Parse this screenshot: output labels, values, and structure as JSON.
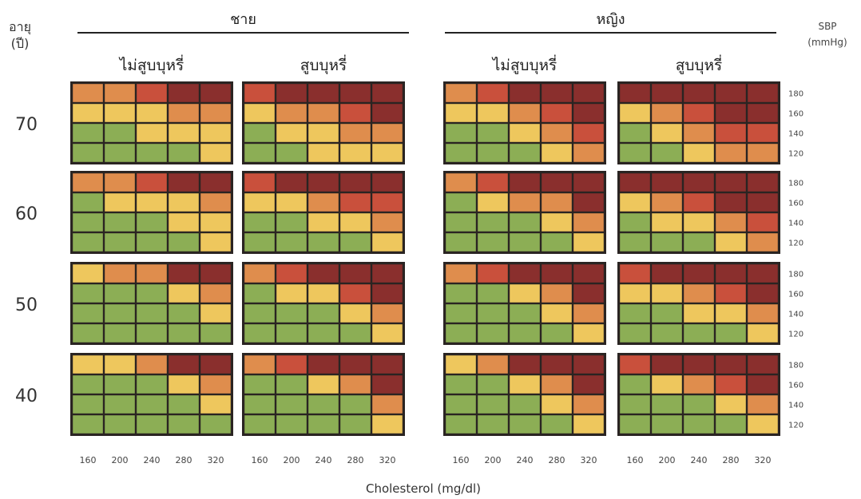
{
  "chart_data": {
    "type": "heatmap",
    "title": "",
    "xlabel": "Cholesterol (mg/dl)",
    "y_axis_label": [
      "อายุ",
      "(ปี)"
    ],
    "sbp_axis_label": [
      "SBP",
      "(mmHg)"
    ],
    "sex_groups": [
      "ชาย",
      "หญิง"
    ],
    "smoking_groups": [
      "ไม่สูบบุหรี่",
      "สูบบุหรี่"
    ],
    "cholesterol_ticks": [
      "160",
      "200",
      "240",
      "280",
      "320"
    ],
    "sbp_ticks": [
      "180",
      "160",
      "140",
      "120"
    ],
    "age_groups": [
      "70",
      "60",
      "50",
      "40"
    ],
    "risk_colors": {
      "1": "#8cae55",
      "2": "#eec75d",
      "3": "#df8d4d",
      "4": "#c9503c",
      "5": "#8a2f2d"
    },
    "panels": [
      {
        "sex": "ชาย",
        "smoking": "ไม่สูบบุหรี่",
        "age": "70",
        "grid": [
          [
            3,
            3,
            4,
            5,
            5
          ],
          [
            2,
            2,
            2,
            3,
            3
          ],
          [
            1,
            1,
            2,
            2,
            2
          ],
          [
            1,
            1,
            1,
            1,
            2
          ]
        ]
      },
      {
        "sex": "ชาย",
        "smoking": "สูบบุหรี่",
        "age": "70",
        "grid": [
          [
            4,
            5,
            5,
            5,
            5
          ],
          [
            2,
            3,
            3,
            4,
            5
          ],
          [
            1,
            2,
            2,
            3,
            3
          ],
          [
            1,
            1,
            2,
            2,
            2
          ]
        ]
      },
      {
        "sex": "หญิง",
        "smoking": "ไม่สูบบุหรี่",
        "age": "70",
        "grid": [
          [
            3,
            4,
            5,
            5,
            5
          ],
          [
            2,
            2,
            3,
            4,
            5
          ],
          [
            1,
            1,
            2,
            3,
            4
          ],
          [
            1,
            1,
            1,
            2,
            3
          ]
        ]
      },
      {
        "sex": "หญิง",
        "smoking": "สูบบุหรี่",
        "age": "70",
        "grid": [
          [
            5,
            5,
            5,
            5,
            5
          ],
          [
            2,
            3,
            4,
            5,
            5
          ],
          [
            1,
            2,
            3,
            4,
            4
          ],
          [
            1,
            1,
            2,
            3,
            3
          ]
        ]
      },
      {
        "sex": "ชาย",
        "smoking": "ไม่สูบบุหรี่",
        "age": "60",
        "grid": [
          [
            3,
            3,
            4,
            5,
            5
          ],
          [
            1,
            2,
            2,
            2,
            3
          ],
          [
            1,
            1,
            1,
            2,
            2
          ],
          [
            1,
            1,
            1,
            1,
            2
          ]
        ]
      },
      {
        "sex": "ชาย",
        "smoking": "สูบบุหรี่",
        "age": "60",
        "grid": [
          [
            4,
            5,
            5,
            5,
            5
          ],
          [
            2,
            2,
            3,
            4,
            4
          ],
          [
            1,
            1,
            2,
            2,
            3
          ],
          [
            1,
            1,
            1,
            1,
            2
          ]
        ]
      },
      {
        "sex": "หญิง",
        "smoking": "ไม่สูบบุหรี่",
        "age": "60",
        "grid": [
          [
            3,
            4,
            5,
            5,
            5
          ],
          [
            1,
            2,
            3,
            3,
            5
          ],
          [
            1,
            1,
            1,
            2,
            3
          ],
          [
            1,
            1,
            1,
            1,
            2
          ]
        ]
      },
      {
        "sex": "หญิง",
        "smoking": "สูบบุหรี่",
        "age": "60",
        "grid": [
          [
            5,
            5,
            5,
            5,
            5
          ],
          [
            2,
            3,
            4,
            5,
            5
          ],
          [
            1,
            2,
            2,
            3,
            4
          ],
          [
            1,
            1,
            1,
            2,
            3
          ]
        ]
      },
      {
        "sex": "ชาย",
        "smoking": "ไม่สูบบุหรี่",
        "age": "50",
        "grid": [
          [
            2,
            3,
            3,
            5,
            5
          ],
          [
            1,
            1,
            1,
            2,
            3
          ],
          [
            1,
            1,
            1,
            1,
            2
          ],
          [
            1,
            1,
            1,
            1,
            1
          ]
        ]
      },
      {
        "sex": "ชาย",
        "smoking": "สูบบุหรี่",
        "age": "50",
        "grid": [
          [
            3,
            4,
            5,
            5,
            5
          ],
          [
            1,
            2,
            2,
            4,
            5
          ],
          [
            1,
            1,
            1,
            2,
            3
          ],
          [
            1,
            1,
            1,
            1,
            2
          ]
        ]
      },
      {
        "sex": "หญิง",
        "smoking": "ไม่สูบบุหรี่",
        "age": "50",
        "grid": [
          [
            3,
            4,
            5,
            5,
            5
          ],
          [
            1,
            1,
            2,
            3,
            5
          ],
          [
            1,
            1,
            1,
            2,
            3
          ],
          [
            1,
            1,
            1,
            1,
            2
          ]
        ]
      },
      {
        "sex": "หญิง",
        "smoking": "สูบบุหรี่",
        "age": "50",
        "grid": [
          [
            4,
            5,
            5,
            5,
            5
          ],
          [
            2,
            2,
            3,
            4,
            5
          ],
          [
            1,
            1,
            2,
            2,
            3
          ],
          [
            1,
            1,
            1,
            1,
            2
          ]
        ]
      },
      {
        "sex": "ชาย",
        "smoking": "ไม่สูบบุหรี่",
        "age": "40",
        "grid": [
          [
            2,
            2,
            3,
            5,
            5
          ],
          [
            1,
            1,
            1,
            2,
            3
          ],
          [
            1,
            1,
            1,
            1,
            2
          ],
          [
            1,
            1,
            1,
            1,
            1
          ]
        ]
      },
      {
        "sex": "ชาย",
        "smoking": "สูบบุหรี่",
        "age": "40",
        "grid": [
          [
            3,
            4,
            5,
            5,
            5
          ],
          [
            1,
            1,
            2,
            3,
            5
          ],
          [
            1,
            1,
            1,
            1,
            3
          ],
          [
            1,
            1,
            1,
            1,
            2
          ]
        ]
      },
      {
        "sex": "หญิง",
        "smoking": "ไม่สูบบุหรี่",
        "age": "40",
        "grid": [
          [
            2,
            3,
            5,
            5,
            5
          ],
          [
            1,
            1,
            2,
            3,
            5
          ],
          [
            1,
            1,
            1,
            2,
            3
          ],
          [
            1,
            1,
            1,
            1,
            2
          ]
        ]
      },
      {
        "sex": "หญิง",
        "smoking": "สูบบุหรี่",
        "age": "40",
        "grid": [
          [
            4,
            5,
            5,
            5,
            5
          ],
          [
            1,
            2,
            3,
            4,
            5
          ],
          [
            1,
            1,
            1,
            2,
            3
          ],
          [
            1,
            1,
            1,
            1,
            2
          ]
        ]
      }
    ]
  }
}
